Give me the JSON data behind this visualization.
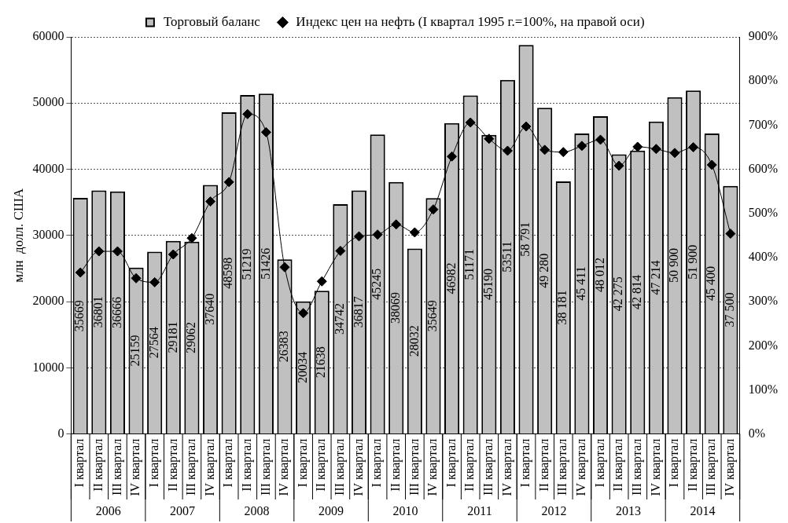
{
  "chart_data": {
    "type": "bar",
    "ylabel": "млн  долл. США",
    "categories": [
      "I квартал",
      "II квартал",
      "III квартал",
      "IV квартал",
      "I квартал",
      "II квартал",
      "III квартал",
      "IV квартал",
      "I квартал",
      "II квартал",
      "III квартал",
      "IV квартал",
      "I квартал",
      "II квартал",
      "III квартал",
      "IV квартал",
      "I квартал",
      "II квартал",
      "III квартал",
      "IV квартал",
      "I квартал",
      "II квартал",
      "III квартал",
      "IV квартал",
      "I квартал",
      "II квартал",
      "III квартал",
      "IV квартал",
      "I квартал",
      "II квартал",
      "III квартал",
      "IV квартал",
      "I квартал",
      "II квартал",
      "III квартал",
      "IV квартал"
    ],
    "annotations": [
      "2006",
      "2007",
      "2008",
      "2009",
      "2010",
      "2011",
      "2012",
      "2013",
      "2014"
    ],
    "series": [
      {
        "name": "Торговый баланс",
        "color": "#c0c0c0",
        "values": [
          35669,
          36801,
          36666,
          25159,
          27564,
          29181,
          29062,
          37640,
          48598,
          51219,
          51426,
          26383,
          20034,
          21638,
          34742,
          36817,
          45245,
          38069,
          28032,
          35649,
          46982,
          51171,
          45190,
          53511,
          58791,
          49280,
          38181,
          45411,
          48012,
          42275,
          42814,
          47214,
          50900,
          51900,
          45400,
          37500
        ],
        "value_labels": [
          "35669",
          "36801",
          "36666",
          "25159",
          "27564",
          "29181",
          "29062",
          "37640",
          "48598",
          "51219",
          "51426",
          "26383",
          "20034",
          "21638",
          "34742",
          "36817",
          "45245",
          "38069",
          "28032",
          "35649",
          "46982",
          "51171",
          "45190",
          "53511",
          "58 791",
          "49 280",
          "38 181",
          "45 411",
          "48 012",
          "42 275",
          "42 814",
          "47 214",
          "50 900",
          "51 900",
          "45 400",
          "37 500"
        ]
      },
      {
        "name": "Индекс цен на нефть (I квартал 1995 г.=100%, на правой оси)",
        "type": "line",
        "axis": "y2",
        "color": "#000000",
        "marker": "diamond",
        "values": [
          366,
          414,
          414,
          353,
          344,
          407,
          444,
          527,
          571,
          725,
          684,
          378,
          274,
          346,
          415,
          448,
          452,
          475,
          457,
          509,
          629,
          706,
          669,
          642,
          697,
          644,
          639,
          653,
          667,
          608,
          651,
          646,
          637,
          650,
          610,
          454
        ]
      }
    ],
    "ylim": [
      0,
      60000
    ],
    "yticks": [
      0,
      10000,
      20000,
      30000,
      40000,
      50000,
      60000
    ],
    "y2lim": [
      0,
      900
    ],
    "y2ticks": [
      {
        "value": 0,
        "label": "0%"
      },
      {
        "value": 100,
        "label": "100%"
      },
      {
        "value": 200,
        "label": "200%"
      },
      {
        "value": 300,
        "label": "300%"
      },
      {
        "value": 400,
        "label": "400%"
      },
      {
        "value": 500,
        "label": "500%"
      },
      {
        "value": 600,
        "label": "600%"
      },
      {
        "value": 700,
        "label": "700%"
      },
      {
        "value": 800,
        "label": "800%"
      },
      {
        "value": 900,
        "label": "900%"
      }
    ],
    "grid": "y",
    "legend": "top"
  }
}
